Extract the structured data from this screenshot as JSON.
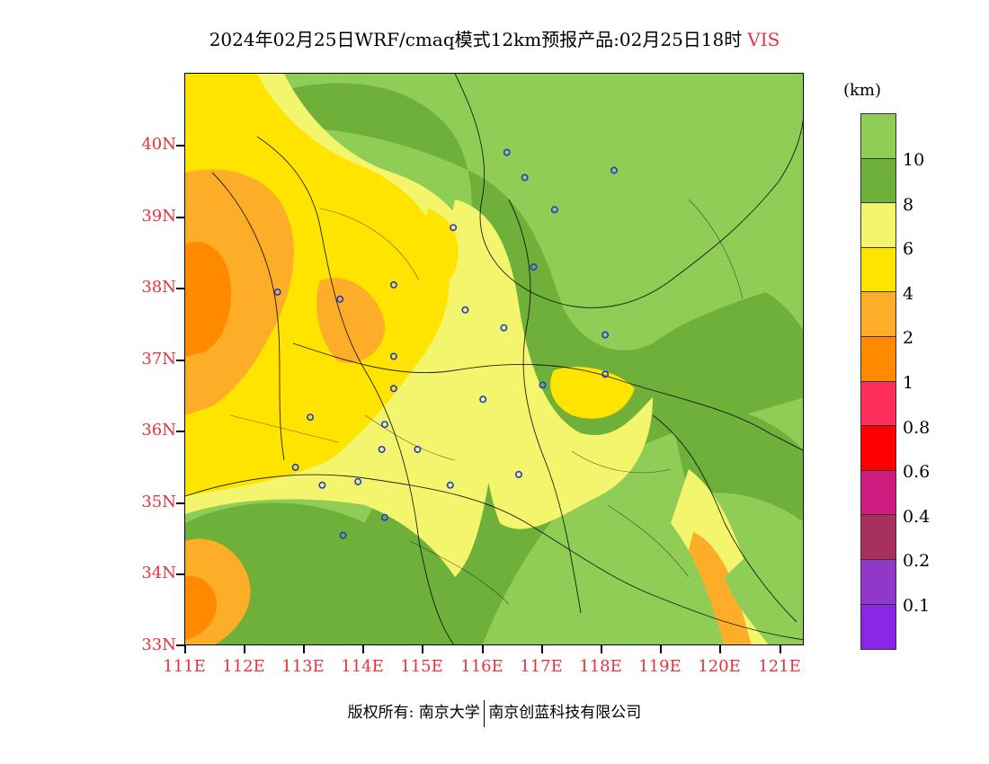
{
  "title": {
    "main": "2024年02月25日WRF/cmaq模式12km预报产品:02月25日18时",
    "variable": "VIS"
  },
  "axes": {
    "lat_labels": [
      "40N",
      "39N",
      "38N",
      "37N",
      "36N",
      "35N",
      "34N",
      "33N"
    ],
    "lon_labels": [
      "111E",
      "112E",
      "113E",
      "114E",
      "115E",
      "116E",
      "117E",
      "118E",
      "119E",
      "120E",
      "121E"
    ],
    "lat_range": [
      33,
      41
    ],
    "lon_range": [
      111,
      121.4
    ]
  },
  "legend": {
    "unit": "(km)",
    "labels": [
      "10",
      "8",
      "6",
      "4",
      "2",
      "1",
      "0.8",
      "0.6",
      "0.4",
      "0.2",
      "0.1"
    ],
    "colors": [
      "#8fcd56",
      "#6fb03a",
      "#f3f56c",
      "#ffe400",
      "#fdad28",
      "#ff8a00",
      "#ff2e5a",
      "#ff0000",
      "#cf1a80",
      "#a8305e",
      "#9038c8",
      "#8a26e6"
    ]
  },
  "stations": [
    {
      "lon": 116.4,
      "lat": 39.9
    },
    {
      "lon": 116.7,
      "lat": 39.55
    },
    {
      "lon": 117.2,
      "lat": 39.1
    },
    {
      "lon": 118.2,
      "lat": 39.65
    },
    {
      "lon": 115.5,
      "lat": 38.85
    },
    {
      "lon": 116.85,
      "lat": 38.3
    },
    {
      "lon": 112.55,
      "lat": 37.95
    },
    {
      "lon": 113.6,
      "lat": 37.85
    },
    {
      "lon": 114.5,
      "lat": 38.05
    },
    {
      "lon": 115.7,
      "lat": 37.7
    },
    {
      "lon": 116.35,
      "lat": 37.45
    },
    {
      "lon": 118.05,
      "lat": 37.35
    },
    {
      "lon": 114.5,
      "lat": 37.05
    },
    {
      "lon": 118.05,
      "lat": 36.8
    },
    {
      "lon": 117.0,
      "lat": 36.65
    },
    {
      "lon": 114.5,
      "lat": 36.6
    },
    {
      "lon": 116.0,
      "lat": 36.45
    },
    {
      "lon": 113.1,
      "lat": 36.2
    },
    {
      "lon": 114.35,
      "lat": 36.1
    },
    {
      "lon": 114.3,
      "lat": 35.75
    },
    {
      "lon": 114.9,
      "lat": 35.75
    },
    {
      "lon": 112.85,
      "lat": 35.5
    },
    {
      "lon": 113.3,
      "lat": 35.25
    },
    {
      "lon": 113.9,
      "lat": 35.3
    },
    {
      "lon": 115.45,
      "lat": 35.25
    },
    {
      "lon": 116.6,
      "lat": 35.4
    },
    {
      "lon": 114.35,
      "lat": 34.8
    },
    {
      "lon": 113.65,
      "lat": 34.55
    }
  ],
  "footer": {
    "left": "版权所有: 南京大学",
    "right": "南京创蓝科技有限公司"
  }
}
